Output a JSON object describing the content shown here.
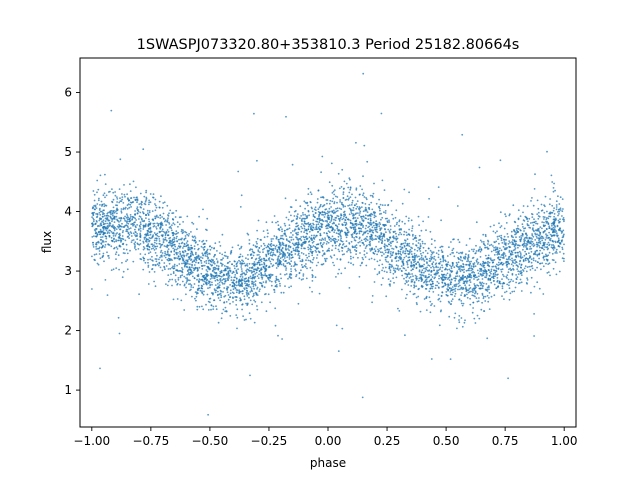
{
  "chart_data": {
    "type": "scatter",
    "title": "1SWASPJ073320.80+353810.3 Period 25182.80664s",
    "xlabel": "phase",
    "ylabel": "flux",
    "xlim": [
      -1.05,
      1.05
    ],
    "ylim": [
      0.38,
      6.58
    ],
    "x_ticks": [
      -1.0,
      -0.75,
      -0.5,
      -0.25,
      0.0,
      0.25,
      0.5,
      0.75,
      1.0
    ],
    "x_tick_labels": [
      "−1.00",
      "−0.75",
      "−0.50",
      "−0.25",
      "0.00",
      "0.25",
      "0.50",
      "0.75",
      "1.00"
    ],
    "y_ticks": [
      1,
      2,
      3,
      4,
      5,
      6
    ],
    "y_tick_labels": [
      "1",
      "2",
      "3",
      "4",
      "5",
      "6"
    ],
    "grid": false,
    "legend": "none",
    "marker_color": "#1f77b4",
    "series": [
      {
        "x": [
          -1.0,
          -0.95,
          -0.9,
          -0.85,
          -0.8,
          -0.75,
          -0.7,
          -0.65,
          -0.6,
          -0.55,
          -0.5,
          -0.45,
          -0.4,
          -0.35,
          -0.3,
          -0.25,
          -0.2,
          -0.15,
          -0.1,
          -0.05,
          0.0,
          0.05,
          0.1,
          0.15,
          0.2,
          0.25,
          0.3,
          0.35,
          0.4,
          0.45,
          0.5,
          0.55,
          0.6,
          0.65,
          0.7,
          0.75,
          0.8,
          0.85,
          0.9,
          0.95,
          1.0
        ],
        "y": [
          3.7,
          3.76,
          3.8,
          3.8,
          3.76,
          3.68,
          3.56,
          3.4,
          3.22,
          3.05,
          2.92,
          2.86,
          2.86,
          2.9,
          3.0,
          3.13,
          3.28,
          3.43,
          3.56,
          3.66,
          3.71,
          3.74,
          3.75,
          3.72,
          3.64,
          3.52,
          3.36,
          3.2,
          3.05,
          2.93,
          2.86,
          2.84,
          2.86,
          2.94,
          3.05,
          3.18,
          3.33,
          3.47,
          3.59,
          3.67,
          3.71
        ],
        "band_halfwidth": [
          0.55,
          0.55,
          0.55,
          0.55,
          0.55,
          0.55,
          0.55,
          0.55,
          0.55,
          0.55,
          0.5,
          0.5,
          0.5,
          0.5,
          0.5,
          0.5,
          0.52,
          0.55,
          0.57,
          0.58,
          0.6,
          0.6,
          0.6,
          0.58,
          0.57,
          0.55,
          0.55,
          0.55,
          0.52,
          0.5,
          0.5,
          0.5,
          0.5,
          0.5,
          0.5,
          0.52,
          0.55,
          0.55,
          0.55,
          0.55,
          0.55
        ]
      }
    ]
  }
}
